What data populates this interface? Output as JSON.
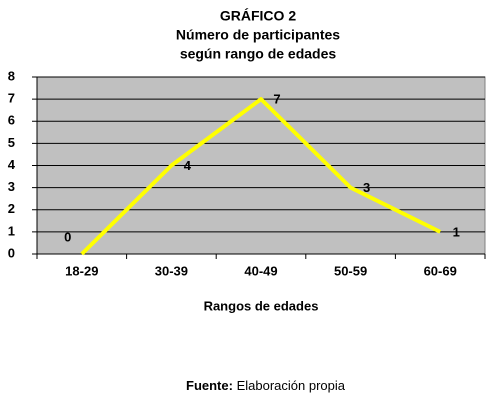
{
  "chart_data": {
    "type": "line",
    "title": [
      "GRÁFICO 2",
      "Número de participantes",
      "según rango de edades"
    ],
    "x_label": "Rangos de edades",
    "categories": [
      "18-29",
      "30-39",
      "40-49",
      "50-59",
      "60-69"
    ],
    "values": [
      0,
      4,
      7,
      3,
      1
    ],
    "color": "#ffff00",
    "plot_background": "#c0c0c0",
    "ylim": [
      0,
      8
    ],
    "yticks": [
      0,
      1,
      2,
      3,
      4,
      5,
      6,
      7,
      8
    ],
    "grid": true,
    "source_label": "Fuente:",
    "source": "Elaboración propia"
  }
}
